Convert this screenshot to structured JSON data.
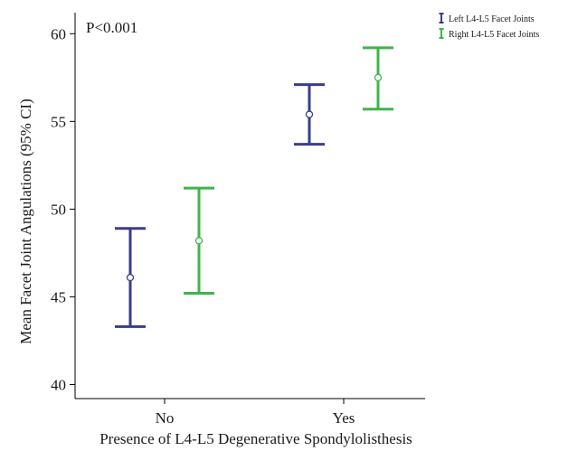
{
  "chart_data": {
    "type": "errorbar",
    "ylabel": "Mean Facet Joint Angulations (95% CI)",
    "xlabel": "Presence of  L4-L5 Degenerative Spondylolisthesis",
    "annotation": "P<0.001",
    "ylim": [
      39.2,
      61.2
    ],
    "yticks": [
      40,
      45,
      50,
      55,
      60
    ],
    "categories": [
      "No",
      "Yes"
    ],
    "legend_position": "top-right",
    "grid": false,
    "series": [
      {
        "name": "Left L4-L5 Facet Joints",
        "color": "#3a3d8c",
        "mean": [
          46.1,
          55.4
        ],
        "lower": [
          43.3,
          53.7
        ],
        "upper": [
          48.9,
          57.1
        ]
      },
      {
        "name": "Right L4-L5 Facet Joints",
        "color": "#3fb54a",
        "mean": [
          48.2,
          57.5
        ],
        "lower": [
          45.2,
          55.7
        ],
        "upper": [
          51.2,
          59.2
        ]
      }
    ]
  }
}
